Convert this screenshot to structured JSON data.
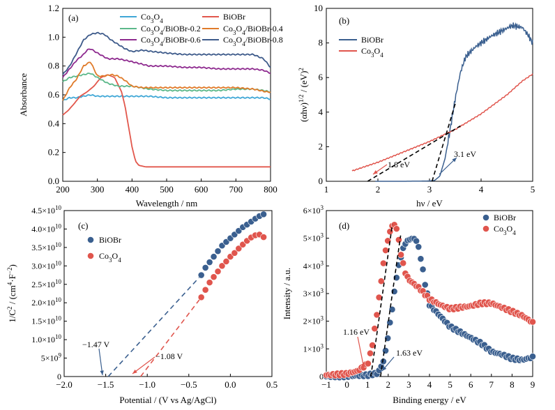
{
  "colors": {
    "co3o4": "#3fa7d6",
    "biobr": "#e2574c",
    "c02": "#5cb88a",
    "c04": "#e07b2a",
    "c06": "#8e2a8f",
    "c08": "#3d5a8a",
    "navy": "#3a5f8f",
    "red": "#e0554d"
  },
  "chart_data": [
    {
      "panel_label": "(a)",
      "type": "line",
      "xlabel": "Wavelength / nm",
      "ylabel": "Absorbance",
      "xlim": [
        200,
        800
      ],
      "ylim": [
        0.0,
        1.2
      ],
      "xticks": [
        "200",
        "300",
        "400",
        "500",
        "600",
        "700",
        "800"
      ],
      "yticks": [
        "0.0",
        "0.2",
        "0.4",
        "0.6",
        "0.8",
        "1.0",
        "1.2"
      ],
      "legend": [
        "Co3O4",
        "BiOBr",
        "Co3O4/BiOBr-0.2",
        "Co3O4/BiOBr-0.4",
        "Co3O4/BiOBr-0.6",
        "Co3O4/BiOBr-0.8"
      ],
      "series": [
        {
          "name": "Co3O4",
          "color_key": "co3o4",
          "x": [
            200,
            220,
            240,
            260,
            280,
            300,
            320,
            350,
            400,
            450,
            500,
            550,
            600,
            650,
            700,
            750,
            780,
            800
          ],
          "y": [
            0.56,
            0.58,
            0.58,
            0.59,
            0.6,
            0.59,
            0.59,
            0.59,
            0.59,
            0.59,
            0.58,
            0.58,
            0.58,
            0.58,
            0.58,
            0.58,
            0.58,
            0.57
          ]
        },
        {
          "name": "BiOBr",
          "color_key": "biobr",
          "x": [
            200,
            215,
            230,
            250,
            270,
            290,
            310,
            330,
            350,
            370,
            380,
            390,
            400,
            410,
            420,
            440,
            500,
            600,
            700,
            800
          ],
          "y": [
            0.46,
            0.49,
            0.53,
            0.59,
            0.62,
            0.66,
            0.72,
            0.74,
            0.72,
            0.62,
            0.52,
            0.38,
            0.24,
            0.14,
            0.11,
            0.1,
            0.1,
            0.1,
            0.1,
            0.1
          ]
        },
        {
          "name": "Co3O4/BiOBr-0.2",
          "color_key": "c02",
          "x": [
            200,
            220,
            240,
            260,
            280,
            300,
            330,
            360,
            400,
            450,
            500,
            550,
            600,
            650,
            700,
            750,
            780,
            800
          ],
          "y": [
            0.69,
            0.72,
            0.73,
            0.74,
            0.75,
            0.72,
            0.68,
            0.66,
            0.66,
            0.64,
            0.63,
            0.63,
            0.63,
            0.63,
            0.64,
            0.64,
            0.63,
            0.62
          ]
        },
        {
          "name": "Co3O4/BiOBr-0.4",
          "color_key": "c04",
          "x": [
            200,
            220,
            240,
            260,
            280,
            300,
            320,
            340,
            360,
            380,
            400,
            430,
            470,
            500,
            550,
            600,
            650,
            700,
            750,
            790,
            800
          ],
          "y": [
            0.56,
            0.65,
            0.71,
            0.8,
            0.83,
            0.73,
            0.73,
            0.74,
            0.73,
            0.7,
            0.66,
            0.65,
            0.65,
            0.65,
            0.65,
            0.65,
            0.65,
            0.65,
            0.64,
            0.62,
            0.62
          ]
        },
        {
          "name": "Co3O4/BiOBr-0.6",
          "color_key": "c06",
          "x": [
            200,
            220,
            240,
            260,
            270,
            280,
            300,
            330,
            360,
            400,
            450,
            500,
            550,
            600,
            650,
            700,
            750,
            780,
            800
          ],
          "y": [
            0.72,
            0.78,
            0.84,
            0.88,
            0.91,
            0.92,
            0.89,
            0.85,
            0.85,
            0.83,
            0.8,
            0.8,
            0.79,
            0.79,
            0.78,
            0.78,
            0.78,
            0.77,
            0.75
          ]
        },
        {
          "name": "Co3O4/BiOBr-0.8",
          "color_key": "c08",
          "x": [
            200,
            220,
            240,
            260,
            280,
            300,
            320,
            340,
            360,
            380,
            400,
            430,
            460,
            500,
            550,
            600,
            650,
            700,
            750,
            780,
            800
          ],
          "y": [
            0.74,
            0.8,
            0.89,
            0.98,
            1.02,
            1.03,
            1.02,
            0.98,
            0.95,
            0.92,
            0.9,
            0.91,
            0.9,
            0.89,
            0.88,
            0.88,
            0.88,
            0.88,
            0.88,
            0.85,
            0.79
          ]
        }
      ]
    },
    {
      "panel_label": "(b)",
      "type": "line",
      "xlabel": "hν / eV",
      "ylabel": "(αhν)1/2 / (eV)2",
      "xlim": [
        1,
        5
      ],
      "ylim": [
        0,
        10
      ],
      "xticks": [
        "1",
        "2",
        "3",
        "4",
        "5"
      ],
      "yticks": [
        "0",
        "2",
        "4",
        "6",
        "8",
        "10"
      ],
      "legend": [
        "BiOBr",
        "Co3O4"
      ],
      "annotations": [
        "1.8 eV",
        "3.1 eV"
      ],
      "series": [
        {
          "name": "BiOBr",
          "color_key": "navy",
          "x": [
            1.95,
            2.5,
            3.0,
            3.1,
            3.2,
            3.3,
            3.4,
            3.5,
            3.6,
            3.7,
            3.8,
            3.9,
            4.0,
            4.2,
            4.4,
            4.6,
            4.8,
            4.9,
            5.0
          ],
          "y": [
            0.0,
            0.0,
            0.02,
            0.05,
            0.3,
            1.3,
            3.0,
            4.8,
            6.3,
            7.2,
            7.5,
            7.8,
            8.0,
            8.4,
            8.7,
            9.0,
            8.9,
            8.5,
            8.0
          ]
        },
        {
          "name": "Co3O4",
          "color_key": "red",
          "x": [
            1.5,
            2.0,
            2.5,
            3.0,
            3.5,
            4.0,
            4.5,
            4.8,
            5.0
          ],
          "y": [
            0.6,
            1.1,
            1.7,
            2.3,
            3.0,
            3.9,
            5.0,
            5.8,
            6.2
          ]
        }
      ],
      "fits": [
        {
          "label": "BiOBr tangent",
          "x": [
            3.05,
            3.5
          ],
          "y": [
            0.0,
            4.5
          ]
        },
        {
          "label": "Co3O4 tangent",
          "x": [
            1.8,
            3.6
          ],
          "y": [
            0.0,
            3.2
          ]
        }
      ]
    },
    {
      "panel_label": "(c)",
      "type": "scatter",
      "xlabel": "Potential / (V vs Ag/AgCl)",
      "ylabel": "1/C2 / (cm4·F-2)",
      "xlim": [
        -2.0,
        0.5
      ],
      "ylim": [
        0,
        45000000000.0
      ],
      "xticks": [
        "−2.0",
        "−1.5",
        "−1.0",
        "−0.5",
        "0.0",
        "0.5"
      ],
      "ytick_labels": [
        [
          "0",
          ""
        ],
        [
          "5×10",
          "9"
        ],
        [
          "1.0×10",
          "10"
        ],
        [
          "1.5×10",
          "10"
        ],
        [
          "2.0×10",
          "10"
        ],
        [
          "2.5×10",
          "10"
        ],
        [
          "3.0×10",
          "10"
        ],
        [
          "3.5×10",
          "10"
        ],
        [
          "4.0×10",
          "10"
        ],
        [
          "4.5×10",
          "10"
        ]
      ],
      "legend": [
        "BiOBr",
        "Co3O4"
      ],
      "annotations": [
        "−1.47 V",
        "−1.08 V"
      ],
      "series": [
        {
          "name": "BiOBr",
          "color_key": "navy",
          "x": [
            -0.35,
            -0.3,
            -0.25,
            -0.2,
            -0.15,
            -0.1,
            -0.05,
            0.0,
            0.05,
            0.1,
            0.15,
            0.2,
            0.25,
            0.3,
            0.35,
            0.4
          ],
          "y": [
            27500000000.0,
            29500000000.0,
            31000000000.0,
            32500000000.0,
            34000000000.0,
            35500000000.0,
            36500000000.0,
            37500000000.0,
            38500000000.0,
            39500000000.0,
            40500000000.0,
            41200000000.0,
            42000000000.0,
            42800000000.0,
            43500000000.0,
            44000000000.0
          ]
        },
        {
          "name": "Co3O4",
          "color_key": "red",
          "x": [
            -0.35,
            -0.3,
            -0.25,
            -0.2,
            -0.15,
            -0.1,
            -0.05,
            0.0,
            0.05,
            0.1,
            0.15,
            0.2,
            0.25,
            0.3,
            0.35,
            0.4
          ],
          "y": [
            21500000000.0,
            23500000000.0,
            25500000000.0,
            27000000000.0,
            28500000000.0,
            30000000000.0,
            31200000000.0,
            32500000000.0,
            33500000000.0,
            34700000000.0,
            35800000000.0,
            36800000000.0,
            37700000000.0,
            38300000000.0,
            38500000000.0,
            37800000000.0
          ]
        }
      ],
      "fits": [
        {
          "label": "BiOBr extrapolation",
          "x": [
            -1.47,
            -0.35
          ],
          "y": [
            0,
            27500000000.0
          ]
        },
        {
          "label": "Co3O4 extrapolation",
          "x": [
            -1.08,
            -0.35
          ],
          "y": [
            0,
            21500000000.0
          ]
        }
      ]
    },
    {
      "panel_label": "(d)",
      "type": "scatter",
      "xlabel": "Binding energy / eV",
      "ylabel": "Intensity / a.u.",
      "xlim": [
        -1,
        9
      ],
      "ylim": [
        0,
        6000
      ],
      "xticks": [
        "−1",
        "0",
        "1",
        "2",
        "3",
        "4",
        "5",
        "6",
        "7",
        "8",
        "9"
      ],
      "ytick_labels": [
        [
          "0",
          ""
        ],
        [
          "1×10",
          "3"
        ],
        [
          "2×10",
          "3"
        ],
        [
          "3×10",
          "3"
        ],
        [
          "4×10",
          "3"
        ],
        [
          "5×10",
          "3"
        ],
        [
          "6×10",
          "3"
        ]
      ],
      "legend": [
        "BiOBr",
        "Co3O4"
      ],
      "annotations": [
        "1.16 eV",
        "1.63 eV"
      ],
      "series": [
        {
          "name": "BiOBr",
          "color_key": "navy",
          "x": [
            -1,
            0,
            1,
            1.5,
            1.8,
            2.0,
            2.2,
            2.4,
            2.6,
            2.8,
            3.0,
            3.2,
            3.4,
            3.6,
            3.8,
            4.0,
            4.5,
            5.0,
            5.5,
            6.0,
            6.5,
            7.0,
            7.5,
            8.0,
            8.5,
            9.0
          ],
          "y": [
            0,
            10,
            50,
            120,
            600,
            1500,
            2500,
            3600,
            4300,
            4800,
            4950,
            5000,
            4900,
            4200,
            3300,
            2600,
            2200,
            1800,
            1600,
            1400,
            1200,
            900,
            800,
            650,
            600,
            700
          ]
        },
        {
          "name": "Co3O4",
          "color_key": "red",
          "x": [
            -1,
            0,
            0.5,
            1.0,
            1.2,
            1.4,
            1.6,
            1.8,
            2.0,
            2.2,
            2.4,
            2.6,
            2.8,
            3.0,
            3.5,
            4.0,
            4.5,
            5.0,
            5.5,
            6.0,
            6.5,
            7.0,
            7.5,
            8.0,
            8.5,
            9.0
          ],
          "y": [
            50,
            100,
            200,
            450,
            1000,
            2000,
            3100,
            4300,
            5000,
            5500,
            5400,
            4500,
            3800,
            3500,
            3200,
            2800,
            2600,
            2450,
            2500,
            2550,
            2650,
            2650,
            2500,
            2350,
            2200,
            1950
          ]
        }
      ],
      "fits": [
        {
          "label": "Co3O4 edge",
          "x": [
            1.16,
            2.2
          ],
          "y": [
            0,
            5500
          ]
        },
        {
          "label": "BiOBr edge",
          "x": [
            1.63,
            2.6
          ],
          "y": [
            0,
            5100
          ]
        }
      ]
    }
  ]
}
